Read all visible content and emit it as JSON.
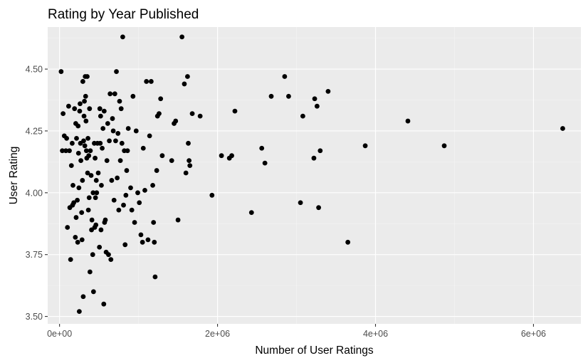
{
  "chart_data": {
    "type": "scatter",
    "title": "Rating by Year Published",
    "xlabel": "Number of User Ratings",
    "ylabel": "User Rating",
    "xlim": [
      -150000,
      6600000
    ],
    "ylim": [
      3.47,
      4.67
    ],
    "x_ticks": [
      0,
      2000000,
      4000000,
      6000000
    ],
    "x_tick_labels": [
      "0e+00",
      "2e+06",
      "4e+06",
      "6e+06"
    ],
    "y_ticks": [
      3.5,
      3.75,
      4.0,
      4.25,
      4.5
    ],
    "y_tick_labels": [
      "3.50",
      "3.75",
      "4.00",
      "4.25",
      "4.50"
    ],
    "grid": true,
    "point_color": "#000000",
    "panel_background": "#ebebeb",
    "points": [
      [
        20000,
        4.49
      ],
      [
        35000,
        4.17
      ],
      [
        45000,
        4.32
      ],
      [
        60000,
        4.23
      ],
      [
        80000,
        4.17
      ],
      [
        90000,
        4.22
      ],
      [
        100000,
        3.86
      ],
      [
        115000,
        4.35
      ],
      [
        125000,
        4.17
      ],
      [
        130000,
        3.94
      ],
      [
        140000,
        3.73
      ],
      [
        150000,
        4.11
      ],
      [
        160000,
        4.2
      ],
      [
        165000,
        3.95
      ],
      [
        170000,
        4.03
      ],
      [
        180000,
        3.96
      ],
      [
        190000,
        4.34
      ],
      [
        200000,
        3.82
      ],
      [
        205000,
        4.28
      ],
      [
        210000,
        3.9
      ],
      [
        215000,
        4.22
      ],
      [
        225000,
        3.97
      ],
      [
        230000,
        3.8
      ],
      [
        235000,
        4.27
      ],
      [
        240000,
        4.16
      ],
      [
        245000,
        4.02
      ],
      [
        250000,
        3.52
      ],
      [
        255000,
        4.33
      ],
      [
        260000,
        4.36
      ],
      [
        265000,
        4.2
      ],
      [
        270000,
        4.13
      ],
      [
        280000,
        3.92
      ],
      [
        285000,
        3.81
      ],
      [
        290000,
        4.05
      ],
      [
        295000,
        4.45
      ],
      [
        300000,
        3.58
      ],
      [
        305000,
        4.21
      ],
      [
        310000,
        4.31
      ],
      [
        315000,
        4.37
      ],
      [
        320000,
        4.19
      ],
      [
        325000,
        4.47
      ],
      [
        330000,
        4.39
      ],
      [
        335000,
        4.29
      ],
      [
        340000,
        4.17
      ],
      [
        345000,
        4.14
      ],
      [
        350000,
        4.47
      ],
      [
        355000,
        4.08
      ],
      [
        360000,
        4.22
      ],
      [
        365000,
        3.93
      ],
      [
        370000,
        4.15
      ],
      [
        375000,
        3.98
      ],
      [
        380000,
        4.34
      ],
      [
        385000,
        3.68
      ],
      [
        390000,
        4.17
      ],
      [
        400000,
        4.07
      ],
      [
        405000,
        3.85
      ],
      [
        410000,
        3.89
      ],
      [
        420000,
        3.75
      ],
      [
        425000,
        4.0
      ],
      [
        430000,
        3.6
      ],
      [
        440000,
        4.2
      ],
      [
        445000,
        3.86
      ],
      [
        450000,
        4.14
      ],
      [
        455000,
        3.98
      ],
      [
        460000,
        3.87
      ],
      [
        465000,
        4.05
      ],
      [
        470000,
        4.0
      ],
      [
        480000,
        4.2
      ],
      [
        490000,
        4.08
      ],
      [
        505000,
        3.78
      ],
      [
        510000,
        4.34
      ],
      [
        515000,
        4.2
      ],
      [
        520000,
        4.31
      ],
      [
        525000,
        3.85
      ],
      [
        530000,
        4.03
      ],
      [
        540000,
        4.18
      ],
      [
        550000,
        4.26
      ],
      [
        560000,
        3.55
      ],
      [
        565000,
        4.33
      ],
      [
        570000,
        3.88
      ],
      [
        580000,
        3.89
      ],
      [
        590000,
        3.76
      ],
      [
        600000,
        4.13
      ],
      [
        610000,
        4.28
      ],
      [
        620000,
        3.75
      ],
      [
        630000,
        4.21
      ],
      [
        640000,
        4.4
      ],
      [
        650000,
        3.73
      ],
      [
        660000,
        4.05
      ],
      [
        670000,
        4.3
      ],
      [
        680000,
        4.25
      ],
      [
        690000,
        3.97
      ],
      [
        700000,
        4.4
      ],
      [
        710000,
        4.21
      ],
      [
        720000,
        4.49
      ],
      [
        730000,
        4.06
      ],
      [
        740000,
        4.24
      ],
      [
        750000,
        3.93
      ],
      [
        760000,
        4.37
      ],
      [
        770000,
        4.13
      ],
      [
        780000,
        4.34
      ],
      [
        790000,
        4.2
      ],
      [
        800000,
        4.63
      ],
      [
        810000,
        3.95
      ],
      [
        820000,
        4.17
      ],
      [
        830000,
        3.79
      ],
      [
        840000,
        3.99
      ],
      [
        850000,
        4.09
      ],
      [
        860000,
        4.17
      ],
      [
        870000,
        4.26
      ],
      [
        900000,
        4.02
      ],
      [
        915000,
        3.93
      ],
      [
        930000,
        4.39
      ],
      [
        950000,
        3.88
      ],
      [
        970000,
        4.25
      ],
      [
        990000,
        4.0
      ],
      [
        1010000,
        3.96
      ],
      [
        1030000,
        3.83
      ],
      [
        1050000,
        3.8
      ],
      [
        1060000,
        4.18
      ],
      [
        1080000,
        4.01
      ],
      [
        1100000,
        4.45
      ],
      [
        1120000,
        3.81
      ],
      [
        1140000,
        4.23
      ],
      [
        1160000,
        4.45
      ],
      [
        1180000,
        4.03
      ],
      [
        1190000,
        3.88
      ],
      [
        1200000,
        3.8
      ],
      [
        1210000,
        3.66
      ],
      [
        1230000,
        4.09
      ],
      [
        1240000,
        4.31
      ],
      [
        1260000,
        4.32
      ],
      [
        1280000,
        4.38
      ],
      [
        1300000,
        4.15
      ],
      [
        1420000,
        4.13
      ],
      [
        1450000,
        4.28
      ],
      [
        1470000,
        4.29
      ],
      [
        1500000,
        3.89
      ],
      [
        1550000,
        4.63
      ],
      [
        1580000,
        4.44
      ],
      [
        1600000,
        4.08
      ],
      [
        1620000,
        4.47
      ],
      [
        1630000,
        4.2
      ],
      [
        1640000,
        4.13
      ],
      [
        1650000,
        4.11
      ],
      [
        1680000,
        4.32
      ],
      [
        1780000,
        4.31
      ],
      [
        1930000,
        3.99
      ],
      [
        2050000,
        4.15
      ],
      [
        2150000,
        4.14
      ],
      [
        2180000,
        4.15
      ],
      [
        2220000,
        4.33
      ],
      [
        2430000,
        3.92
      ],
      [
        2560000,
        4.18
      ],
      [
        2600000,
        4.12
      ],
      [
        2680000,
        4.39
      ],
      [
        2850000,
        4.47
      ],
      [
        2900000,
        4.39
      ],
      [
        3050000,
        3.96
      ],
      [
        3080000,
        4.31
      ],
      [
        3220000,
        4.14
      ],
      [
        3230000,
        4.38
      ],
      [
        3260000,
        4.35
      ],
      [
        3280000,
        3.94
      ],
      [
        3300000,
        4.17
      ],
      [
        3400000,
        4.41
      ],
      [
        3650000,
        3.8
      ],
      [
        3870000,
        4.19
      ],
      [
        4410000,
        4.29
      ],
      [
        4870000,
        4.19
      ],
      [
        6370000,
        4.26
      ]
    ]
  }
}
